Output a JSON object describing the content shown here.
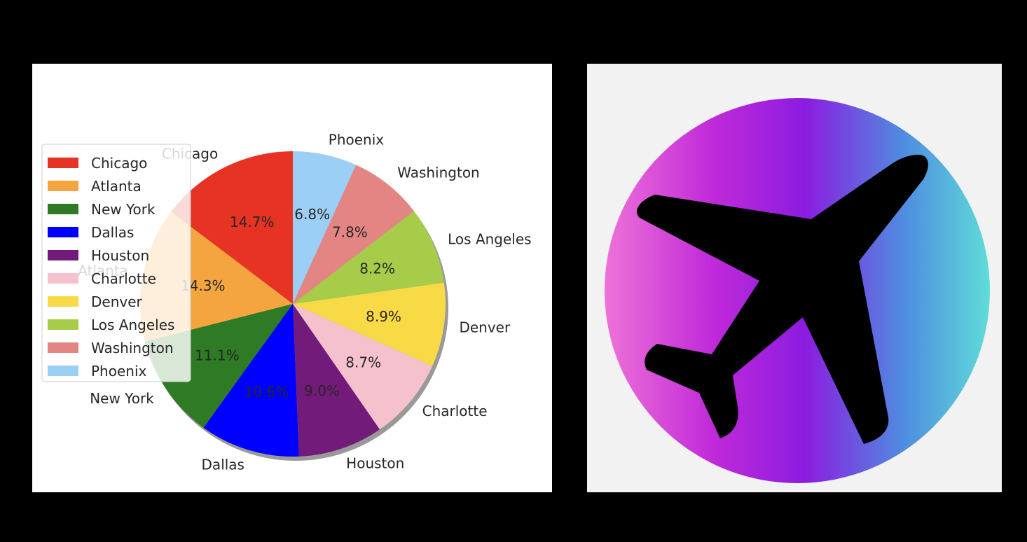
{
  "chart_data": {
    "type": "pie",
    "categories": [
      "Chicago",
      "Atlanta",
      "New York",
      "Dallas",
      "Houston",
      "Charlotte",
      "Denver",
      "Los Angeles",
      "Washington",
      "Phoenix"
    ],
    "values": [
      14.7,
      14.3,
      11.1,
      10.6,
      9.0,
      8.7,
      8.9,
      8.2,
      7.8,
      6.8
    ],
    "value_labels": [
      "14.7%",
      "14.3%",
      "11.1%",
      "10.6%",
      "9.0%",
      "8.7%",
      "8.9%",
      "8.2%",
      "7.8%",
      "6.8%"
    ],
    "colors": [
      "#e63323",
      "#f4a540",
      "#2f7a25",
      "#0000ff",
      "#731b7b",
      "#f5c1cc",
      "#f8da46",
      "#a6cc4a",
      "#e38683",
      "#9ccff5"
    ],
    "counterclockwise": true,
    "shadow": true,
    "legend": {
      "placement": "center-left",
      "entries": [
        "Chicago",
        "Atlanta",
        "New York",
        "Dallas",
        "Houston",
        "Charlotte",
        "Denver",
        "Los Angeles",
        "Washington",
        "Phoenix"
      ]
    }
  },
  "logo": {
    "icon": "airplane-icon",
    "gradient_colors": [
      "#ee72d8",
      "#c02ad9",
      "#8b1ce0",
      "#4e8ee0",
      "#5fdcd9"
    ]
  }
}
